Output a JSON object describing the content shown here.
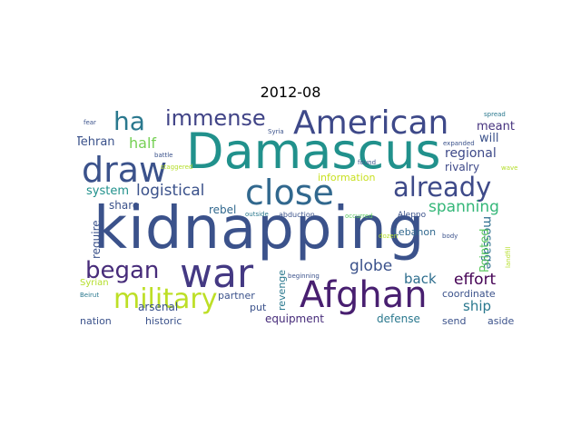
{
  "title": "2012-08",
  "words": [
    {
      "text": "kidnapping",
      "color": "#3b528b"
    },
    {
      "text": "Damascus",
      "color": "#21918c"
    },
    {
      "text": "war",
      "color": "#443983"
    },
    {
      "text": "American",
      "color": "#3e4989"
    },
    {
      "text": "close",
      "color": "#31688e"
    },
    {
      "text": "Afghan",
      "color": "#481f70"
    },
    {
      "text": "draw",
      "color": "#3b528b"
    },
    {
      "text": "military",
      "color": "#bddf26"
    },
    {
      "text": "already",
      "color": "#3e4a89"
    },
    {
      "text": "ha",
      "color": "#2a788e"
    },
    {
      "text": "immense",
      "color": "#414487"
    },
    {
      "text": "began",
      "color": "#472c7a"
    },
    {
      "text": "logistical",
      "color": "#3b528b"
    },
    {
      "text": "spanning",
      "color": "#35b779"
    },
    {
      "text": "globe",
      "color": "#3b528b"
    },
    {
      "text": "effort",
      "color": "#440154"
    },
    {
      "text": "half",
      "color": "#75d054"
    },
    {
      "text": "regional",
      "color": "#3e4989"
    },
    {
      "text": "back",
      "color": "#2e6e8e"
    },
    {
      "text": "ship",
      "color": "#2a788e"
    },
    {
      "text": "message",
      "color": "#2e6e8e"
    },
    {
      "text": "Pointed",
      "color": "#5ec962"
    },
    {
      "text": "meant",
      "color": "#46327e"
    },
    {
      "text": "will",
      "color": "#3b528b"
    },
    {
      "text": "rivalry",
      "color": "#3e4989"
    },
    {
      "text": "system",
      "color": "#21918c"
    },
    {
      "text": "Tehran",
      "color": "#3b528b"
    },
    {
      "text": "share",
      "color": "#3b528b"
    },
    {
      "text": "rebel",
      "color": "#31688e"
    },
    {
      "text": "information",
      "color": "#c8e020"
    },
    {
      "text": "Lebanon",
      "color": "#31688e"
    },
    {
      "text": "require",
      "color": "#3b528b"
    },
    {
      "text": "arsenal",
      "color": "#3b528b"
    },
    {
      "text": "partner",
      "color": "#3b528b"
    },
    {
      "text": "revenge",
      "color": "#2a788e"
    },
    {
      "text": "put",
      "color": "#3b528b"
    },
    {
      "text": "coordinate",
      "color": "#3b528b"
    },
    {
      "text": "equipment",
      "color": "#472c7a"
    },
    {
      "text": "defense",
      "color": "#2a788e"
    },
    {
      "text": "send",
      "color": "#3b528b"
    },
    {
      "text": "nation",
      "color": "#3b528b"
    },
    {
      "text": "historic",
      "color": "#3b528b"
    },
    {
      "text": "aside",
      "color": "#3b528b"
    },
    {
      "text": "Syrian",
      "color": "#b5de2b"
    },
    {
      "text": "Aleppo",
      "color": "#3b528b"
    },
    {
      "text": "abduction",
      "color": "#3b528b"
    },
    {
      "text": "outside",
      "color": "#2a788e"
    },
    {
      "text": "occurred",
      "color": "#5ec962"
    },
    {
      "text": "beginning",
      "color": "#3b528b"
    },
    {
      "text": "Beirut",
      "color": "#2a788e"
    },
    {
      "text": "found",
      "color": "#3b528b"
    },
    {
      "text": "Syria",
      "color": "#3b528b"
    },
    {
      "text": "battle",
      "color": "#3b528b"
    },
    {
      "text": "staggered",
      "color": "#b5de2b"
    },
    {
      "text": "fear",
      "color": "#3b528b"
    },
    {
      "text": "spread",
      "color": "#2a788e"
    },
    {
      "text": "expanded",
      "color": "#3b528b"
    },
    {
      "text": "wave",
      "color": "#b5de2b"
    },
    {
      "text": "landfill",
      "color": "#b5de2b"
    },
    {
      "text": "body",
      "color": "#3b528b"
    },
    {
      "text": "dozen",
      "color": "#b5de2b"
    }
  ]
}
